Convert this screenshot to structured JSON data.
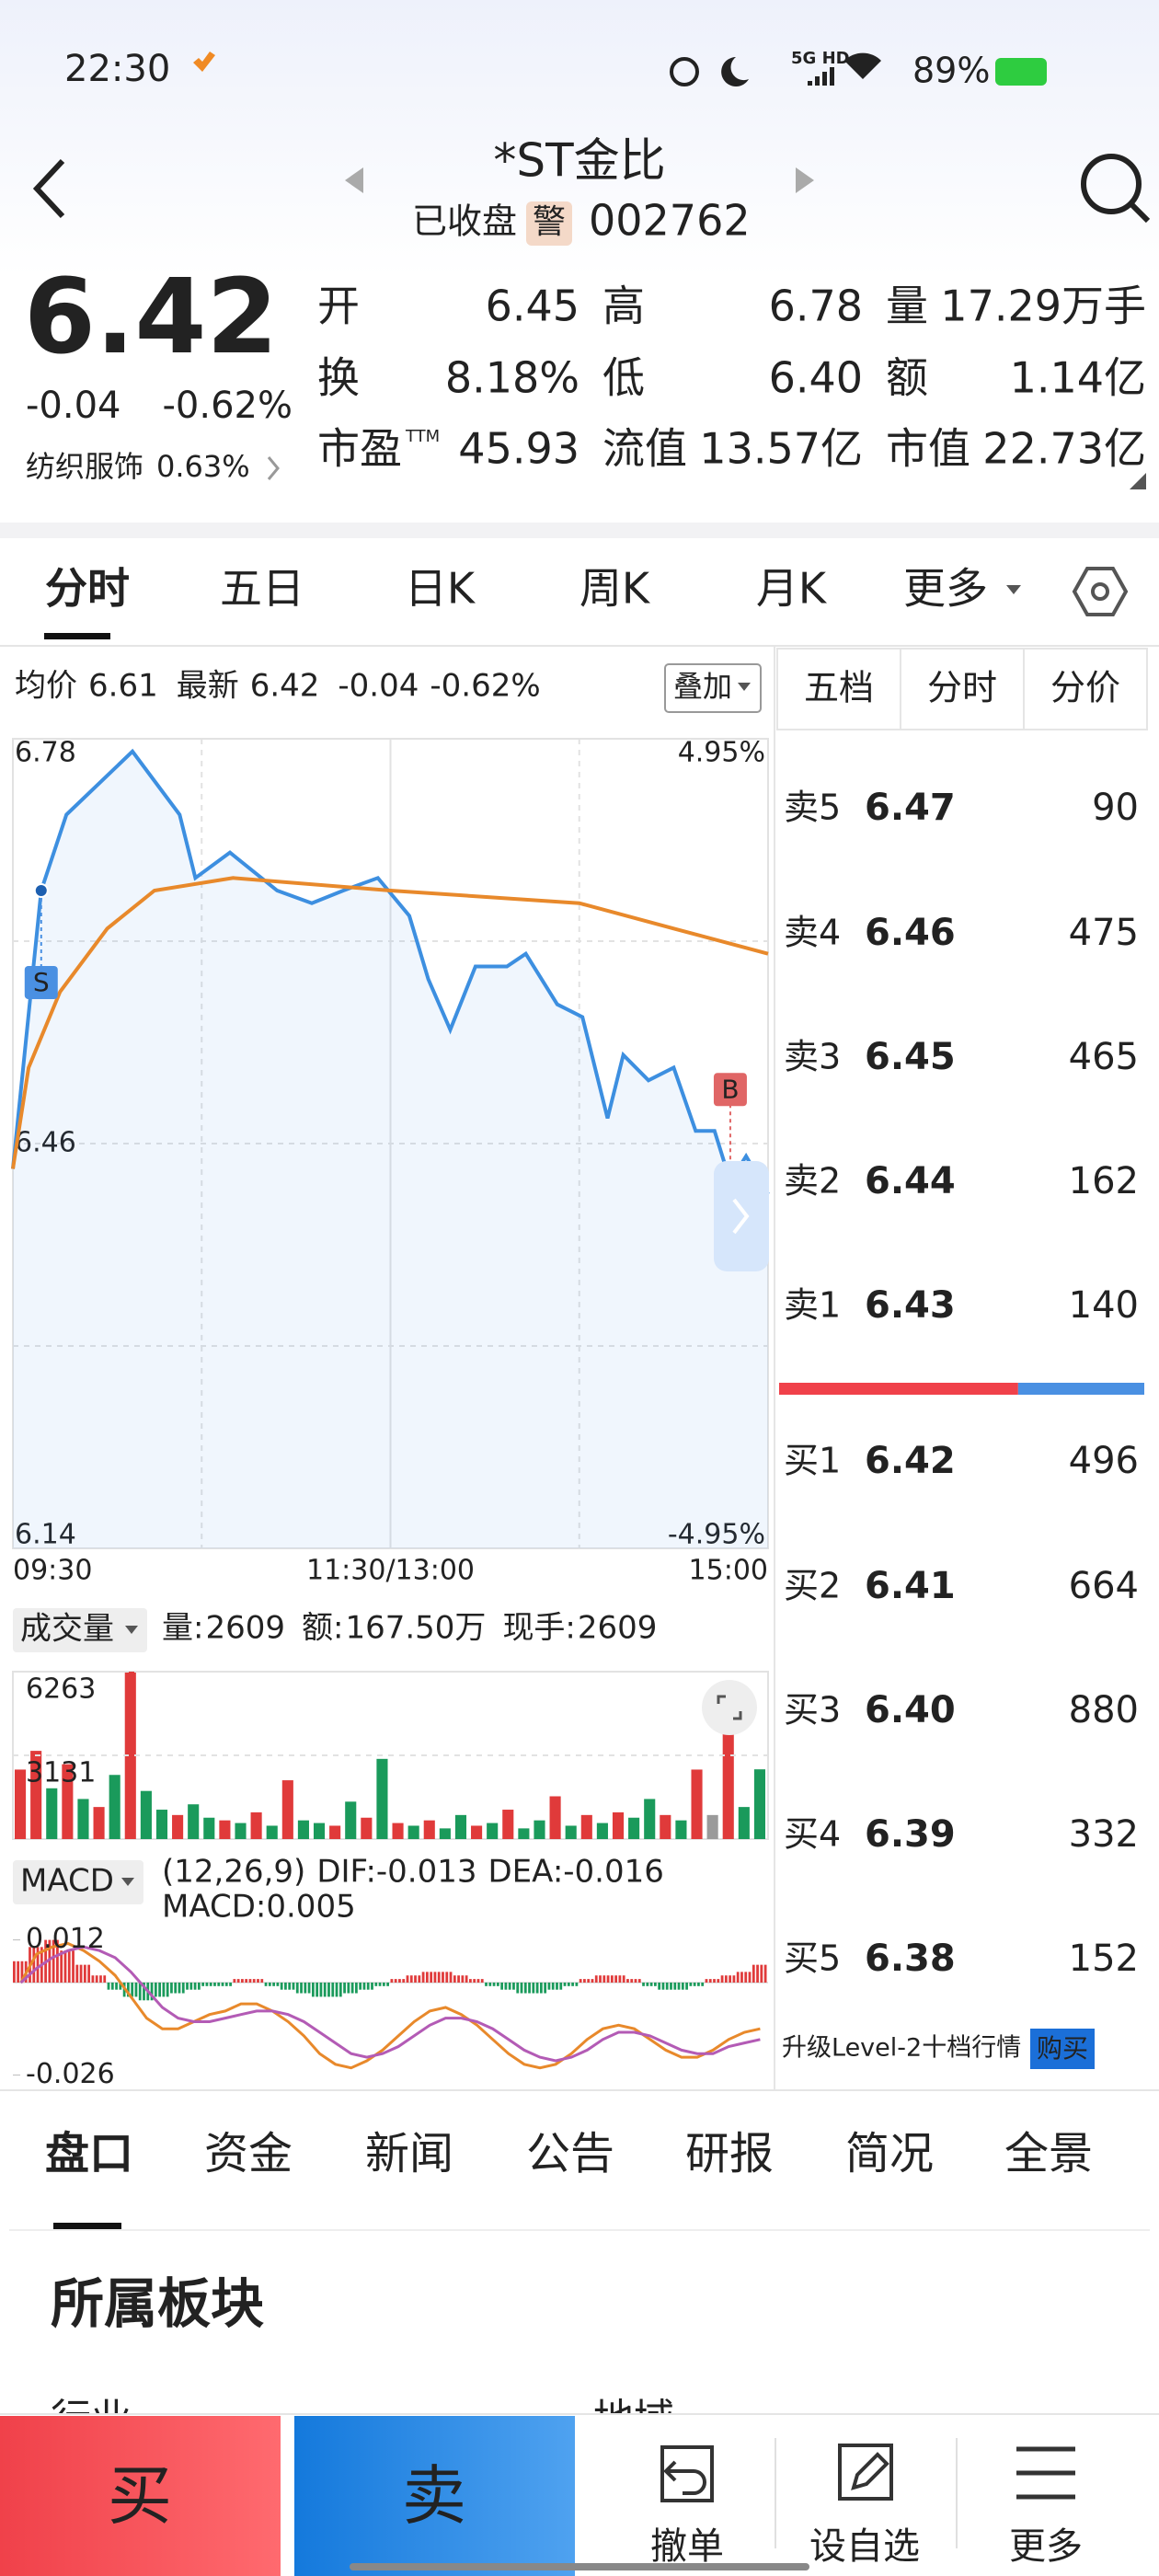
{
  "status": {
    "time": "22:30",
    "network": "5G HD",
    "battery": "89%"
  },
  "header": {
    "title": "*ST金比",
    "state": "已收盘",
    "badge": "警",
    "code": "002762"
  },
  "quote": {
    "price": "6.42",
    "change": "-0.04",
    "change_pct": "-0.62%",
    "sector": "纺织服饰",
    "sector_pct": "0.63%"
  },
  "stats": [
    {
      "label": "开",
      "value": "6.45",
      "color": "#1a9a5b"
    },
    {
      "label": "高",
      "value": "6.78",
      "color": "#e03a3a"
    },
    {
      "label": "量",
      "value": "17.29万手",
      "color": "#222222"
    },
    {
      "label": "换",
      "value": "8.18%",
      "color": "#222222"
    },
    {
      "label": "低",
      "value": "6.40",
      "color": "#1a9a5b"
    },
    {
      "label": "额",
      "value": "1.14亿",
      "color": "#222222"
    },
    {
      "label": "市盈",
      "sup": "TTM",
      "value": "45.93",
      "color": "#222222"
    },
    {
      "label": "流值",
      "value": "13.57亿",
      "color": "#222222"
    },
    {
      "label": "市值",
      "value": "22.73亿",
      "color": "#222222"
    }
  ],
  "tabs": [
    "分时",
    "五日",
    "日K",
    "周K",
    "月K",
    "更多"
  ],
  "info": {
    "avg_label": "均价",
    "avg": "6.61",
    "last_label": "最新",
    "last": "6.42",
    "change": "-0.04",
    "change_pct": "-0.62%",
    "overlay": "叠加"
  },
  "chart_data": [
    {
      "type": "line",
      "xlim": [
        0,
        240
      ],
      "ylim": [
        6.14,
        6.78
      ],
      "y2lim": [
        -4.95,
        4.95
      ],
      "xticks": [
        {
          "value": 0,
          "label": "09:30"
        },
        {
          "value": 120,
          "label": "11:30/13:00"
        },
        {
          "value": 240,
          "label": "15:00"
        }
      ],
      "yticks": [
        6.78,
        6.46,
        6.14
      ],
      "y2ticks": [
        {
          "value": 4.95,
          "label": "4.95%"
        },
        {
          "value": -4.95,
          "label": "-4.95%"
        }
      ],
      "grid": true,
      "lines": [
        {
          "color": "#3d8fe0",
          "area": true,
          "x": [
            0,
            9,
            17,
            38,
            53,
            58,
            69,
            84,
            95,
            105,
            116,
            126,
            132,
            139,
            147,
            157,
            163,
            173,
            181,
            189,
            194,
            202,
            210,
            217,
            223,
            228,
            233,
            240
          ],
          "values": [
            6.44,
            6.66,
            6.72,
            6.77,
            6.72,
            6.67,
            6.69,
            6.66,
            6.65,
            6.66,
            6.67,
            6.64,
            6.59,
            6.55,
            6.6,
            6.6,
            6.61,
            6.57,
            6.56,
            6.48,
            6.53,
            6.51,
            6.52,
            6.47,
            6.47,
            6.43,
            6.45,
            6.42
          ]
        },
        {
          "color": "#e8892b",
          "area": false,
          "x": [
            0,
            5,
            15,
            30,
            45,
            70,
            120,
            180,
            210,
            240
          ],
          "values": [
            6.44,
            6.52,
            6.58,
            6.63,
            6.66,
            6.67,
            6.66,
            6.65,
            6.63,
            6.61
          ]
        }
      ],
      "markers": [
        {
          "label": "S",
          "x": 9,
          "color": "#4a90e2"
        },
        {
          "label": "B",
          "x": 228,
          "color": "#e06666"
        }
      ]
    },
    {
      "type": "bar",
      "ylim": [
        0,
        6263
      ],
      "yticks": [
        6263,
        3131
      ],
      "values": [
        2600,
        3300,
        1900,
        2800,
        1500,
        1200,
        2400,
        6263,
        1800,
        1100,
        900,
        1300,
        800,
        700,
        600,
        1000,
        500,
        2200,
        700,
        600,
        500,
        1400,
        800,
        3000,
        600,
        500,
        700,
        400,
        900,
        500,
        600,
        1100,
        400,
        700,
        1600,
        500,
        900,
        600,
        1000,
        800,
        1500,
        900,
        700,
        2600,
        900,
        4200,
        1200,
        2609
      ],
      "colors": [
        "#e03a3a",
        "#e03a3a",
        "#1a9a5b",
        "#e03a3a",
        "#1a9a5b",
        "#e03a3a",
        "#1a9a5b",
        "#e03a3a",
        "#1a9a5b",
        "#1a9a5b",
        "#e03a3a",
        "#1a9a5b",
        "#1a9a5b",
        "#e03a3a",
        "#1a9a5b",
        "#e03a3a",
        "#1a9a5b",
        "#e03a3a",
        "#1a9a5b",
        "#1a9a5b",
        "#e03a3a",
        "#1a9a5b",
        "#e03a3a",
        "#1a9a5b",
        "#e03a3a",
        "#1a9a5b",
        "#e03a3a",
        "#1a9a5b",
        "#1a9a5b",
        "#e03a3a",
        "#1a9a5b",
        "#e03a3a",
        "#1a9a5b",
        "#1a9a5b",
        "#e03a3a",
        "#1a9a5b",
        "#e03a3a",
        "#1a9a5b",
        "#e03a3a",
        "#1a9a5b",
        "#1a9a5b",
        "#e03a3a",
        "#1a9a5b",
        "#e03a3a",
        "#9a9a9a",
        "#e03a3a",
        "#1a9a5b",
        "#1a9a5b"
      ]
    },
    {
      "type": "macd",
      "ylim": [
        -0.029,
        0.015
      ],
      "yticks": [
        0.012,
        -0.026
      ],
      "up_color": "#e03a3a",
      "down_color": "#1a9a5b",
      "histogram": [
        0.006,
        0.01,
        0.012,
        0.009,
        0.005,
        0.002,
        -0.002,
        -0.004,
        -0.005,
        -0.004,
        -0.003,
        -0.002,
        -0.001,
        -0.001,
        0.001,
        0.001,
        -0.001,
        -0.002,
        -0.003,
        -0.004,
        -0.004,
        -0.003,
        -0.002,
        -0.001,
        0.001,
        0.002,
        0.003,
        0.003,
        0.002,
        0.001,
        -0.001,
        -0.002,
        -0.003,
        -0.003,
        -0.002,
        -0.001,
        0.001,
        0.002,
        0.002,
        0.001,
        -0.001,
        -0.002,
        -0.002,
        -0.001,
        0.001,
        0.002,
        0.003,
        0.005
      ],
      "lines": [
        {
          "color": "#e8892b",
          "values": [
            0,
            0.008,
            0.01,
            0.011,
            0.009,
            0.006,
            0.002,
            -0.004,
            -0.01,
            -0.013,
            -0.013,
            -0.011,
            -0.009,
            -0.008,
            -0.006,
            -0.006,
            -0.008,
            -0.011,
            -0.015,
            -0.02,
            -0.023,
            -0.024,
            -0.022,
            -0.019,
            -0.015,
            -0.011,
            -0.008,
            -0.007,
            -0.009,
            -0.012,
            -0.016,
            -0.02,
            -0.023,
            -0.024,
            -0.023,
            -0.02,
            -0.016,
            -0.013,
            -0.012,
            -0.013,
            -0.016,
            -0.019,
            -0.021,
            -0.021,
            -0.019,
            -0.016,
            -0.014,
            -0.013
          ]
        },
        {
          "color": "#b35bb5",
          "values": [
            0,
            0.004,
            0.007,
            0.009,
            0.01,
            0.009,
            0.007,
            0.003,
            -0.002,
            -0.007,
            -0.01,
            -0.011,
            -0.011,
            -0.01,
            -0.009,
            -0.008,
            -0.008,
            -0.009,
            -0.011,
            -0.014,
            -0.017,
            -0.02,
            -0.021,
            -0.02,
            -0.018,
            -0.015,
            -0.012,
            -0.01,
            -0.01,
            -0.011,
            -0.013,
            -0.016,
            -0.019,
            -0.021,
            -0.022,
            -0.021,
            -0.019,
            -0.016,
            -0.014,
            -0.014,
            -0.015,
            -0.017,
            -0.019,
            -0.02,
            -0.02,
            -0.018,
            -0.017,
            -0.016
          ]
        }
      ]
    }
  ],
  "volume_header": {
    "label": "成交量",
    "items": [
      {
        "key": "量:",
        "value": "2609",
        "color": "#e08a2c"
      },
      {
        "key": "额:",
        "value": "167.50万",
        "color": "#4a7fc1"
      },
      {
        "key": "现手:",
        "value": "2609",
        "color": "#e08a2c"
      }
    ]
  },
  "macd_header": {
    "label": "MACD",
    "params": "(12,26,9)",
    "dif": "DIF:-0.013",
    "dea": "DEA:-0.016",
    "macd": "MACD:0.005"
  },
  "order_book": {
    "tabs": [
      "五档",
      "分时",
      "分价"
    ],
    "asks": [
      {
        "label": "卖5",
        "price": "6.47",
        "volume": 90,
        "color": "#e03a3a"
      },
      {
        "label": "卖4",
        "price": "6.46",
        "volume": 475,
        "color": "#222222"
      },
      {
        "label": "卖3",
        "price": "6.45",
        "volume": 465,
        "color": "#1a9a5b"
      },
      {
        "label": "卖2",
        "price": "6.44",
        "volume": 162,
        "color": "#1a9a5b"
      },
      {
        "label": "卖1",
        "price": "6.43",
        "volume": 140,
        "color": "#1a9a5b"
      }
    ],
    "bids": [
      {
        "label": "买1",
        "price": "6.42",
        "volume": 496,
        "color": "#1a9a5b"
      },
      {
        "label": "买2",
        "price": "6.41",
        "volume": 664,
        "color": "#1a9a5b"
      },
      {
        "label": "买3",
        "price": "6.40",
        "volume": 880,
        "color": "#1a9a5b"
      },
      {
        "label": "买4",
        "price": "6.39",
        "volume": 332,
        "color": "#1a9a5b"
      },
      {
        "label": "买5",
        "price": "6.38",
        "volume": 152,
        "color": "#1a9a5b"
      }
    ],
    "level2": "升级Level-2十档行情",
    "buy": "购买"
  },
  "detail_tabs": [
    "盘口",
    "资金",
    "新闻",
    "公告",
    "研报",
    "简况",
    "全景"
  ],
  "section": {
    "title": "所属板块",
    "labels": [
      "行业",
      "地域"
    ]
  },
  "actions": {
    "buy": "买",
    "sell": "卖",
    "tools": [
      "撤单",
      "设自选",
      "更多"
    ]
  }
}
